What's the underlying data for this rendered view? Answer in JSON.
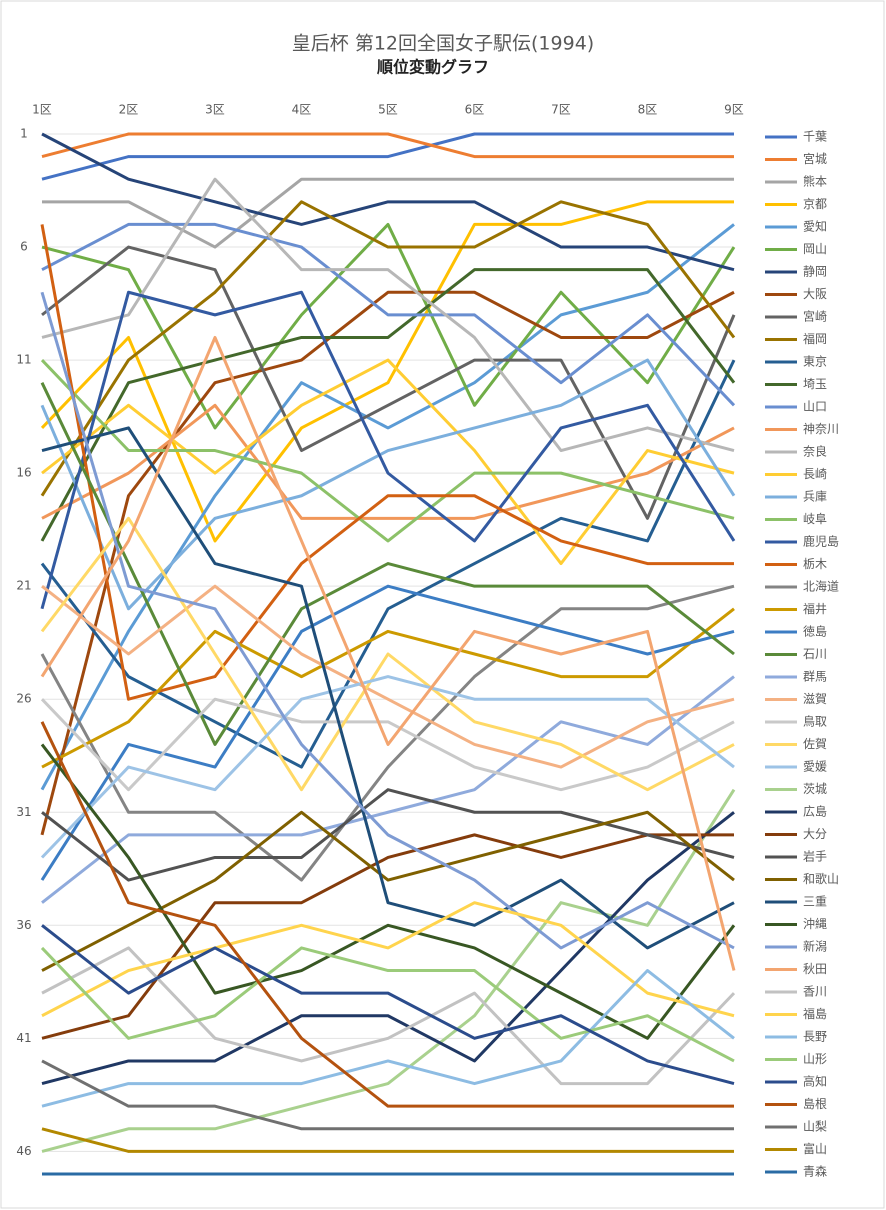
{
  "chart_data": {
    "type": "line",
    "title": "皇后杯 第12回全国女子駅伝(1994)",
    "subtitle": "順位変動グラフ",
    "categories": [
      "1区",
      "2区",
      "3区",
      "4区",
      "5区",
      "6区",
      "7区",
      "8区",
      "9区"
    ],
    "ylim": [
      1,
      47
    ],
    "y_reversed": true,
    "yticks": [
      1,
      6,
      11,
      16,
      21,
      26,
      31,
      36,
      41,
      46
    ],
    "grid": true,
    "legend": "right",
    "series": [
      {
        "name": "千葉",
        "color": "#4472C4",
        "values": [
          3,
          2,
          2,
          2,
          2,
          1,
          1,
          1,
          1
        ]
      },
      {
        "name": "宮城",
        "color": "#ED7D31",
        "values": [
          2,
          1,
          1,
          1,
          1,
          2,
          2,
          2,
          2
        ]
      },
      {
        "name": "熊本",
        "color": "#A5A5A5",
        "values": [
          4,
          4,
          6,
          3,
          3,
          3,
          3,
          3,
          3
        ]
      },
      {
        "name": "京都",
        "color": "#FFC000",
        "values": [
          14,
          10,
          19,
          14,
          12,
          5,
          5,
          4,
          4
        ]
      },
      {
        "name": "愛知",
        "color": "#5B9BD5",
        "values": [
          30,
          23,
          17,
          12,
          14,
          12,
          9,
          8,
          5
        ]
      },
      {
        "name": "岡山",
        "color": "#70AD47",
        "values": [
          6,
          7,
          14,
          9,
          5,
          13,
          8,
          12,
          6
        ]
      },
      {
        "name": "静岡",
        "color": "#264478",
        "values": [
          1,
          3,
          4,
          5,
          4,
          4,
          6,
          6,
          7
        ]
      },
      {
        "name": "大阪",
        "color": "#9E480E",
        "values": [
          32,
          17,
          12,
          11,
          8,
          8,
          10,
          10,
          8
        ]
      },
      {
        "name": "宮崎",
        "color": "#636363",
        "values": [
          9,
          6,
          7,
          15,
          13,
          11,
          11,
          18,
          9
        ]
      },
      {
        "name": "福岡",
        "color": "#997300",
        "values": [
          17,
          11,
          8,
          4,
          6,
          6,
          4,
          5,
          10
        ]
      },
      {
        "name": "東京",
        "color": "#255E91",
        "values": [
          20,
          25,
          27,
          29,
          22,
          20,
          18,
          19,
          11
        ]
      },
      {
        "name": "埼玉",
        "color": "#43682B",
        "values": [
          19,
          12,
          11,
          10,
          10,
          7,
          7,
          7,
          12
        ]
      },
      {
        "name": "山口",
        "color": "#698ED0",
        "values": [
          7,
          5,
          5,
          6,
          9,
          9,
          12,
          9,
          13
        ]
      },
      {
        "name": "神奈川",
        "color": "#F1975A",
        "values": [
          18,
          16,
          13,
          18,
          18,
          18,
          17,
          16,
          14
        ]
      },
      {
        "name": "奈良",
        "color": "#B7B7B7",
        "values": [
          10,
          9,
          3,
          7,
          7,
          10,
          15,
          14,
          15
        ]
      },
      {
        "name": "長崎",
        "color": "#FFCD33",
        "values": [
          16,
          13,
          16,
          13,
          11,
          15,
          20,
          15,
          16
        ]
      },
      {
        "name": "兵庫",
        "color": "#7CAFDD",
        "values": [
          13,
          22,
          18,
          17,
          15,
          14,
          13,
          11,
          17
        ]
      },
      {
        "name": "岐阜",
        "color": "#8CC168",
        "values": [
          11,
          15,
          15,
          16,
          19,
          16,
          16,
          17,
          18
        ]
      },
      {
        "name": "鹿児島",
        "color": "#335AA1",
        "values": [
          22,
          8,
          9,
          8,
          16,
          19,
          14,
          13,
          19
        ]
      },
      {
        "name": "栃木",
        "color": "#D26012",
        "values": [
          5,
          26,
          25,
          20,
          17,
          17,
          19,
          20,
          20
        ]
      },
      {
        "name": "北海道",
        "color": "#848484",
        "values": [
          24,
          31,
          31,
          34,
          29,
          25,
          22,
          22,
          21
        ]
      },
      {
        "name": "福井",
        "color": "#CC9A00",
        "values": [
          29,
          27,
          23,
          25,
          23,
          24,
          25,
          25,
          22
        ]
      },
      {
        "name": "徳島",
        "color": "#3C7DC4",
        "values": [
          34,
          28,
          29,
          23,
          21,
          22,
          23,
          24,
          23
        ]
      },
      {
        "name": "石川",
        "color": "#5A8A39",
        "values": [
          12,
          20,
          28,
          22,
          20,
          21,
          21,
          21,
          24
        ]
      },
      {
        "name": "群馬",
        "color": "#8FAADC",
        "values": [
          35,
          32,
          32,
          32,
          31,
          30,
          27,
          28,
          25
        ]
      },
      {
        "name": "滋賀",
        "color": "#F4B183",
        "values": [
          21,
          24,
          21,
          24,
          26,
          28,
          29,
          27,
          26
        ]
      },
      {
        "name": "鳥取",
        "color": "#C9C9C9",
        "values": [
          26,
          30,
          26,
          27,
          27,
          29,
          30,
          29,
          27
        ]
      },
      {
        "name": "佐賀",
        "color": "#FFD966",
        "values": [
          23,
          18,
          24,
          30,
          24,
          27,
          28,
          30,
          28
        ]
      },
      {
        "name": "愛媛",
        "color": "#9DC3E6",
        "values": [
          33,
          29,
          30,
          26,
          25,
          26,
          26,
          26,
          29
        ]
      },
      {
        "name": "茨城",
        "color": "#A9D18E",
        "values": [
          46,
          45,
          45,
          44,
          43,
          40,
          35,
          36,
          30
        ]
      },
      {
        "name": "広島",
        "color": "#203864",
        "values": [
          43,
          42,
          42,
          40,
          40,
          42,
          38,
          34,
          31
        ]
      },
      {
        "name": "大分",
        "color": "#843C0C",
        "values": [
          41,
          40,
          35,
          35,
          33,
          32,
          33,
          32,
          32
        ]
      },
      {
        "name": "岩手",
        "color": "#525252",
        "values": [
          31,
          34,
          33,
          33,
          30,
          31,
          31,
          32,
          33
        ]
      },
      {
        "name": "和歌山",
        "color": "#7F6000",
        "values": [
          38,
          36,
          34,
          31,
          34,
          33,
          32,
          31,
          34
        ]
      },
      {
        "name": "三重",
        "color": "#1F4E79",
        "values": [
          15,
          14,
          20,
          21,
          35,
          36,
          34,
          37,
          35
        ]
      },
      {
        "name": "沖縄",
        "color": "#385723",
        "values": [
          28,
          33,
          39,
          38,
          36,
          37,
          39,
          41,
          36
        ]
      },
      {
        "name": "新潟",
        "color": "#7E9BD3",
        "values": [
          8,
          21,
          22,
          28,
          32,
          34,
          37,
          35,
          37
        ]
      },
      {
        "name": "秋田",
        "color": "#F3A570",
        "values": [
          25,
          19,
          10,
          19,
          28,
          23,
          24,
          23,
          38
        ]
      },
      {
        "name": "香川",
        "color": "#C2C2C2",
        "values": [
          39,
          37,
          41,
          42,
          41,
          39,
          43,
          43,
          39
        ]
      },
      {
        "name": "福島",
        "color": "#FFD44D",
        "values": [
          40,
          38,
          37,
          36,
          37,
          35,
          36,
          39,
          40
        ]
      },
      {
        "name": "長野",
        "color": "#8DBCE3",
        "values": [
          44,
          43,
          43,
          43,
          42,
          43,
          42,
          38,
          41
        ]
      },
      {
        "name": "山形",
        "color": "#9BCB7A",
        "values": [
          37,
          41,
          40,
          37,
          38,
          38,
          41,
          40,
          42
        ]
      },
      {
        "name": "高知",
        "color": "#2B4C8C",
        "values": [
          36,
          39,
          37,
          39,
          39,
          41,
          40,
          42,
          43
        ]
      },
      {
        "name": "島根",
        "color": "#B4520F",
        "values": [
          27,
          35,
          36,
          41,
          44,
          44,
          44,
          44,
          44
        ]
      },
      {
        "name": "山梨",
        "color": "#707070",
        "values": [
          42,
          44,
          44,
          45,
          45,
          45,
          45,
          45,
          45
        ]
      },
      {
        "name": "富山",
        "color": "#B28800",
        "values": [
          45,
          46,
          46,
          46,
          46,
          46,
          46,
          46,
          46
        ]
      },
      {
        "name": "青森",
        "color": "#2A6BA4",
        "values": [
          47,
          47,
          47,
          47,
          47,
          47,
          47,
          47,
          47
        ]
      }
    ]
  }
}
